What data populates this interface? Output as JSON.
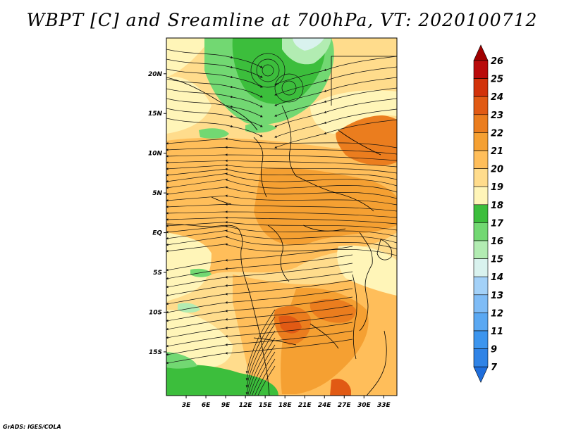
{
  "title": "WBPT [C] and Sreamline at 700hPa, VT: 2020100712",
  "credit": "GrADS: IGES/COLA",
  "map": {
    "lon_range": [
      0,
      35
    ],
    "lat_range": [
      -20.5,
      24.5
    ],
    "lat_ticks": [
      {
        "value": 20,
        "label": "20N"
      },
      {
        "value": 15,
        "label": "15N"
      },
      {
        "value": 10,
        "label": "10N"
      },
      {
        "value": 5,
        "label": "5N"
      },
      {
        "value": 0,
        "label": "EQ"
      },
      {
        "value": -5,
        "label": "5S"
      },
      {
        "value": -10,
        "label": "10S"
      },
      {
        "value": -15,
        "label": "15S"
      }
    ],
    "lon_ticks": [
      {
        "value": 3,
        "label": "3E"
      },
      {
        "value": 6,
        "label": "6E"
      },
      {
        "value": 9,
        "label": "9E"
      },
      {
        "value": 12,
        "label": "12E"
      },
      {
        "value": 15,
        "label": "15E"
      },
      {
        "value": 18,
        "label": "18E"
      },
      {
        "value": 21,
        "label": "21E"
      },
      {
        "value": 24,
        "label": "24E"
      },
      {
        "value": 27,
        "label": "27E"
      },
      {
        "value": 30,
        "label": "30E"
      },
      {
        "value": 33,
        "label": "33E"
      }
    ]
  },
  "colorbar": {
    "levels": [
      {
        "label": "7",
        "color": "#1e6edc"
      },
      {
        "label": "9",
        "color": "#2f83e6"
      },
      {
        "label": "11",
        "color": "#3c95ee"
      },
      {
        "label": "12",
        "color": "#5aa8f2"
      },
      {
        "label": "13",
        "color": "#7fbcf6"
      },
      {
        "label": "14",
        "color": "#a3d1f8"
      },
      {
        "label": "15",
        "color": "#d9f2ee"
      },
      {
        "label": "16",
        "color": "#b2ecb2"
      },
      {
        "label": "17",
        "color": "#72d872"
      },
      {
        "label": "18",
        "color": "#3cbe3c"
      },
      {
        "label": "19",
        "color": "#fff5b8"
      },
      {
        "label": "20",
        "color": "#ffdc8c"
      },
      {
        "label": "21",
        "color": "#ffbe5a"
      },
      {
        "label": "22",
        "color": "#f5a032"
      },
      {
        "label": "23",
        "color": "#eb7d1e"
      },
      {
        "label": "24",
        "color": "#e15a14"
      },
      {
        "label": "25",
        "color": "#d2320a"
      },
      {
        "label": "26",
        "color": "#b90a0a"
      }
    ],
    "bottom_color": "#1e6edc",
    "top_color": "#a00000"
  },
  "colors": {
    "yellow": "#fff5b8",
    "light_orange": "#ffdc8c",
    "orange": "#ffbe5a",
    "deep_orange": "#f5a032",
    "red_orange": "#eb7d1e",
    "red": "#e15a14",
    "green": "#3cbe3c",
    "mid_green": "#72d872",
    "light_green": "#b2ecb2",
    "pale_cyan": "#d9f2ee"
  }
}
